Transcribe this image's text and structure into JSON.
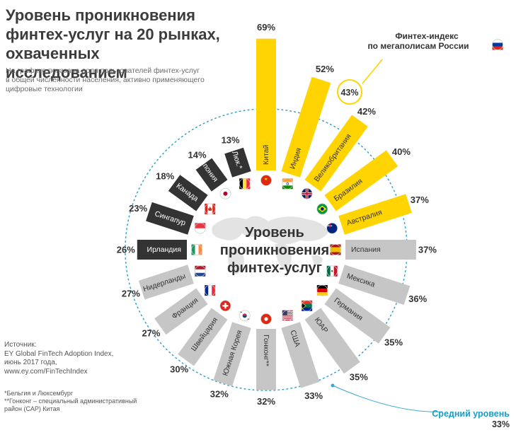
{
  "title_lines": [
    "Уровень проникновения",
    "финтех-услуг на 20 рынках,",
    "охваченных исследованием"
  ],
  "subtitle_lines": [
    "На графике показана доля пользователей финтех-услуг",
    "в общей численности населения, активно применяющего",
    "цифровые технологии"
  ],
  "center_label_lines": [
    "Уровень",
    "проникновения",
    "финтех-услуг"
  ],
  "source_lines": [
    "Источник:",
    "EY Global FinTech Adoption Index,",
    "июнь 2017 года,",
    "www.ey.com/FinTechIndex"
  ],
  "footnote_lines": [
    "*Бельгия и Люксембург",
    "**Гонконг – специальный административный",
    "район (САР) Китая"
  ],
  "callout": {
    "label_lines": [
      "Финтех-индекс",
      "по мегаполисам России"
    ],
    "value": "43%",
    "flag": "russia-flag"
  },
  "average": {
    "label": "Средний уровень",
    "value": "33%"
  },
  "colors": {
    "leaders": "#ffd400",
    "middle": "#c6c6c6",
    "laggards": "#333333",
    "average_ring": "#3aa7cf",
    "average_label": "#1b9cc4",
    "title": "#3c3c3c",
    "text": "#333333"
  },
  "chart_data": {
    "type": "bar",
    "layout": "radial",
    "unit": "%",
    "average": 33,
    "categories": [
      "Китай",
      "Индия",
      "Великобритания",
      "Бразилия",
      "Австралия",
      "Испания",
      "Мексика",
      "Германия",
      "ЮАР",
      "США",
      "Гонконг**",
      "Южная Корея",
      "Швейцария",
      "Франция",
      "Нидерланды",
      "Ирландия",
      "Сингапур",
      "Канада",
      "Япония",
      "Бел. и Люк.*"
    ],
    "values": [
      69,
      52,
      42,
      40,
      37,
      37,
      36,
      35,
      35,
      33,
      32,
      32,
      30,
      27,
      27,
      26,
      23,
      18,
      14,
      13
    ],
    "value_labels": [
      "69%",
      "52%",
      "42%",
      "40%",
      "37%",
      "37%",
      "36%",
      "35%",
      "35%",
      "33%",
      "32%",
      "32%",
      "30%",
      "27%",
      "27%",
      "26%",
      "23%",
      "18%",
      "14%",
      "13%"
    ],
    "groups": [
      "leader",
      "leader",
      "leader",
      "leader",
      "leader",
      "middle",
      "middle",
      "middle",
      "middle",
      "middle",
      "middle",
      "middle",
      "middle",
      "middle",
      "middle",
      "laggard",
      "laggard",
      "laggard",
      "laggard",
      "laggard"
    ],
    "flags": [
      "china-flag",
      "india-flag",
      "uk-flag",
      "brazil-flag",
      "australia-flag",
      "spain-flag",
      "mexico-flag",
      "germany-flag",
      "south-africa-flag",
      "usa-flag",
      "hong-kong-flag",
      "south-korea-flag",
      "switzerland-flag",
      "france-flag",
      "netherlands-flag",
      "ireland-flag",
      "singapore-flag",
      "canada-flag",
      "japan-flag",
      "belgium-luxembourg-flag"
    ]
  }
}
